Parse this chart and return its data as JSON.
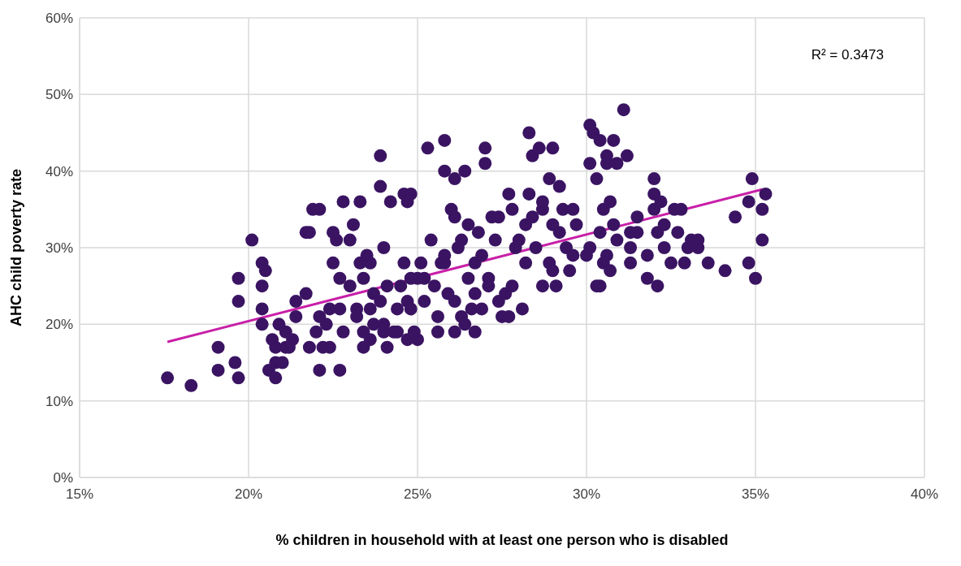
{
  "chart_data": {
    "type": "scatter",
    "xlabel": "% children in household with at least one person who is disabled",
    "ylabel": "AHC child poverty rate",
    "annotations": [
      "R² = 0.3473"
    ],
    "xlim": [
      15,
      40
    ],
    "ylim": [
      0,
      60
    ],
    "xticks": [
      {
        "value": 15,
        "label": "15%"
      },
      {
        "value": 20,
        "label": "20%"
      },
      {
        "value": 25,
        "label": "25%"
      },
      {
        "value": 30,
        "label": "30%"
      },
      {
        "value": 35,
        "label": "35%"
      },
      {
        "value": 40,
        "label": "40%"
      }
    ],
    "yticks": [
      {
        "value": 0,
        "label": "0%"
      },
      {
        "value": 10,
        "label": "10%"
      },
      {
        "value": 20,
        "label": "20%"
      },
      {
        "value": 30,
        "label": "30%"
      },
      {
        "value": 40,
        "label": "40%"
      },
      {
        "value": 50,
        "label": "50%"
      },
      {
        "value": 60,
        "label": "60%"
      }
    ],
    "grid": true,
    "legend": false,
    "series": [
      {
        "marker": "circle",
        "color": "#3a1462",
        "x": [
          17.6,
          18.3,
          19.1,
          19.1,
          19.6,
          19.7,
          19.7,
          19.7,
          20.1,
          20.4,
          20.4,
          20.5,
          20.4,
          20.4,
          20.6,
          20.7,
          20.8,
          20.8,
          20.8,
          20.9,
          21.0,
          21.1,
          21.1,
          21.3,
          21.2,
          21.4,
          21.4,
          21.7,
          21.7,
          21.8,
          21.8,
          21.9,
          22.1,
          22.0,
          22.1,
          22.2,
          22.1,
          22.3,
          22.4,
          22.4,
          22.5,
          22.5,
          22.6,
          22.7,
          22.7,
          22.7,
          22.8,
          22.8,
          23.0,
          23.0,
          23.1,
          23.2,
          23.2,
          23.3,
          23.3,
          23.4,
          23.4,
          23.4,
          23.5,
          23.6,
          23.6,
          23.6,
          23.7,
          23.7,
          23.9,
          23.9,
          23.9,
          24.0,
          24.0,
          24.0,
          24.1,
          24.1,
          24.2,
          24.3,
          24.4,
          24.4,
          24.5,
          24.6,
          24.6,
          24.7,
          24.7,
          24.7,
          24.8,
          24.8,
          24.8,
          24.9,
          25.0,
          25.0,
          25.1,
          25.2,
          25.2,
          25.3,
          25.4,
          25.5,
          25.6,
          25.6,
          25.7,
          25.8,
          25.8,
          25.8,
          25.8,
          25.9,
          26.0,
          26.1,
          26.1,
          26.1,
          26.1,
          26.2,
          26.3,
          26.3,
          26.4,
          26.4,
          26.5,
          26.5,
          26.6,
          26.7,
          26.7,
          26.7,
          26.8,
          26.9,
          26.9,
          27.0,
          27.0,
          27.1,
          27.1,
          27.2,
          27.3,
          27.4,
          27.4,
          27.5,
          27.6,
          27.7,
          27.7,
          27.8,
          27.8,
          27.9,
          28.0,
          28.1,
          28.2,
          28.2,
          28.3,
          28.3,
          28.4,
          28.4,
          28.5,
          28.6,
          28.7,
          28.7,
          28.7,
          28.9,
          28.9,
          29.0,
          29.0,
          29.0,
          29.1,
          29.2,
          29.2,
          29.3,
          29.4,
          29.5,
          29.6,
          29.6,
          29.7,
          30.0,
          30.1,
          30.1,
          30.1,
          30.2,
          30.3,
          30.3,
          30.4,
          30.4,
          30.4,
          30.5,
          30.5,
          30.6,
          30.6,
          30.6,
          30.7,
          30.7,
          30.8,
          30.8,
          30.9,
          30.9,
          31.1,
          31.2,
          31.3,
          31.3,
          31.3,
          31.5,
          31.5,
          31.8,
          31.8,
          32.0,
          32.0,
          32.0,
          32.1,
          32.1,
          32.2,
          32.3,
          32.3,
          32.5,
          32.6,
          32.7,
          32.8,
          32.9,
          33.0,
          33.1,
          33.3,
          33.3,
          33.6,
          34.1,
          34.4,
          34.8,
          34.8,
          34.9,
          35.0,
          35.3,
          35.2,
          35.2
        ],
        "values": [
          13,
          12,
          17,
          14,
          15,
          26,
          23,
          13,
          31,
          28,
          25,
          27,
          22,
          20,
          14,
          18,
          15,
          13,
          17,
          20,
          15,
          19,
          17,
          18,
          17,
          23,
          21,
          32,
          24,
          17,
          32,
          35,
          35,
          19,
          21,
          17,
          14,
          20,
          17,
          22,
          32,
          28,
          31,
          26,
          14,
          22,
          36,
          19,
          31,
          25,
          33,
          21,
          22,
          28,
          36,
          17,
          26,
          19,
          29,
          22,
          28,
          18,
          24,
          20,
          42,
          38,
          23,
          20,
          30,
          19,
          17,
          25,
          36,
          19,
          22,
          19,
          25,
          37,
          28,
          36,
          23,
          18,
          37,
          26,
          22,
          19,
          18,
          26,
          28,
          23,
          26,
          43,
          31,
          25,
          19,
          21,
          28,
          29,
          44,
          40,
          28,
          24,
          35,
          34,
          23,
          39,
          19,
          30,
          31,
          21,
          40,
          20,
          26,
          33,
          22,
          28,
          19,
          24,
          32,
          29,
          22,
          43,
          41,
          26,
          25,
          34,
          31,
          34,
          23,
          21,
          24,
          37,
          21,
          25,
          35,
          30,
          31,
          22,
          28,
          33,
          45,
          37,
          42,
          34,
          30,
          43,
          35,
          25,
          36,
          28,
          39,
          27,
          33,
          43,
          25,
          38,
          32,
          35,
          30,
          27,
          35,
          29,
          33,
          29,
          30,
          46,
          41,
          45,
          39,
          25,
          25,
          32,
          44,
          28,
          35,
          41,
          29,
          42,
          36,
          27,
          44,
          33,
          41,
          31,
          48,
          42,
          32,
          28,
          30,
          34,
          32,
          26,
          29,
          39,
          37,
          35,
          32,
          25,
          36,
          33,
          30,
          28,
          35,
          32,
          35,
          28,
          30,
          31,
          30,
          31,
          28,
          27,
          34,
          28,
          36,
          39,
          26,
          37,
          35,
          31
        ]
      },
      {
        "type": "line",
        "color": "#c81fa8",
        "x": [
          17.6,
          35.2
        ],
        "values": [
          17.7,
          37.6
        ]
      }
    ]
  }
}
